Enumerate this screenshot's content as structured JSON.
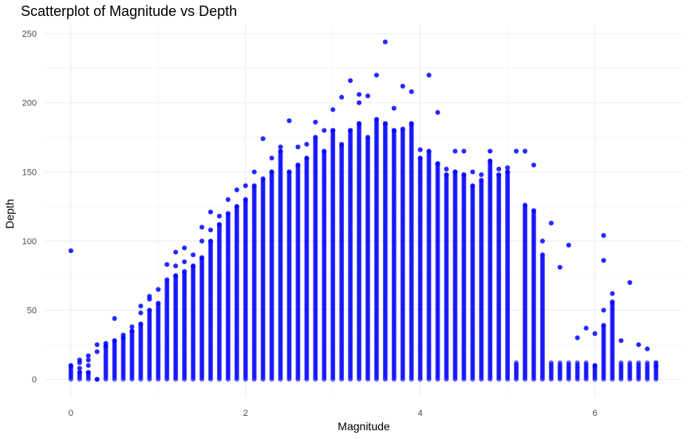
{
  "chart_data": {
    "type": "scatter",
    "title": "Scatterplot of Magnitude vs Depth",
    "xlabel": "Magnitude",
    "ylabel": "Depth",
    "xlim": [
      -0.3,
      7.0
    ],
    "ylim": [
      -12,
      257
    ],
    "x_ticks": [
      0,
      2,
      4,
      6
    ],
    "y_ticks": [
      0,
      50,
      100,
      150,
      200,
      250
    ],
    "grid": true,
    "point_color": "#0000ff",
    "point_opacity": 0.6,
    "series": [
      {
        "points": [
          [
            0.0,
            10
          ],
          [
            0.0,
            93
          ],
          [
            0.1,
            12
          ],
          [
            0.1,
            8
          ],
          [
            0.1,
            5
          ],
          [
            0.1,
            14
          ],
          [
            0.2,
            10
          ],
          [
            0.2,
            14
          ],
          [
            0.2,
            17
          ],
          [
            0.2,
            5
          ],
          [
            0.3,
            20
          ],
          [
            0.3,
            25
          ],
          [
            0.3,
            0
          ],
          [
            0.4,
            24
          ],
          [
            0.4,
            26
          ],
          [
            0.5,
            28
          ],
          [
            0.5,
            44
          ],
          [
            0.6,
            30
          ],
          [
            0.6,
            32
          ],
          [
            0.7,
            35
          ],
          [
            0.7,
            38
          ],
          [
            0.8,
            40
          ],
          [
            0.8,
            48
          ],
          [
            0.8,
            53
          ],
          [
            0.9,
            50
          ],
          [
            0.9,
            58
          ],
          [
            0.9,
            60
          ],
          [
            1.0,
            55
          ],
          [
            1.0,
            65
          ],
          [
            1.1,
            72
          ],
          [
            1.1,
            83
          ],
          [
            1.2,
            75
          ],
          [
            1.2,
            82
          ],
          [
            1.2,
            92
          ],
          [
            1.3,
            78
          ],
          [
            1.3,
            85
          ],
          [
            1.3,
            95
          ],
          [
            1.4,
            82
          ],
          [
            1.4,
            90
          ],
          [
            1.5,
            88
          ],
          [
            1.5,
            100
          ],
          [
            1.5,
            110
          ],
          [
            1.6,
            100
          ],
          [
            1.6,
            108
          ],
          [
            1.6,
            121
          ],
          [
            1.7,
            112
          ],
          [
            1.7,
            118
          ],
          [
            1.8,
            120
          ],
          [
            1.8,
            130
          ],
          [
            1.9,
            125
          ],
          [
            1.9,
            137
          ],
          [
            2.0,
            130
          ],
          [
            2.0,
            140
          ],
          [
            2.1,
            140
          ],
          [
            2.1,
            150
          ],
          [
            2.2,
            145
          ],
          [
            2.2,
            174
          ],
          [
            2.3,
            150
          ],
          [
            2.3,
            160
          ],
          [
            2.4,
            165
          ],
          [
            2.4,
            168
          ],
          [
            2.5,
            150
          ],
          [
            2.5,
            187
          ],
          [
            2.6,
            155
          ],
          [
            2.6,
            168
          ],
          [
            2.7,
            160
          ],
          [
            2.7,
            170
          ],
          [
            2.8,
            175
          ],
          [
            2.8,
            186
          ],
          [
            2.9,
            165
          ],
          [
            2.9,
            180
          ],
          [
            3.0,
            180
          ],
          [
            3.0,
            195
          ],
          [
            3.1,
            170
          ],
          [
            3.1,
            204
          ],
          [
            3.2,
            180
          ],
          [
            3.2,
            216
          ],
          [
            3.3,
            185
          ],
          [
            3.3,
            206
          ],
          [
            3.3,
            200
          ],
          [
            3.4,
            175
          ],
          [
            3.4,
            205
          ],
          [
            3.5,
            188
          ],
          [
            3.5,
            220
          ],
          [
            3.6,
            185
          ],
          [
            3.6,
            244
          ],
          [
            3.7,
            180
          ],
          [
            3.7,
            196
          ],
          [
            3.8,
            181
          ],
          [
            3.8,
            212
          ],
          [
            3.9,
            185
          ],
          [
            3.9,
            208
          ],
          [
            4.0,
            160
          ],
          [
            4.0,
            166
          ],
          [
            4.1,
            165
          ],
          [
            4.1,
            220
          ],
          [
            4.2,
            156
          ],
          [
            4.2,
            193
          ],
          [
            4.3,
            148
          ],
          [
            4.3,
            152
          ],
          [
            4.4,
            150
          ],
          [
            4.4,
            165
          ],
          [
            4.5,
            148
          ],
          [
            4.5,
            165
          ],
          [
            4.6,
            150
          ],
          [
            4.6,
            140
          ],
          [
            4.7,
            144
          ],
          [
            4.7,
            148
          ],
          [
            4.8,
            158
          ],
          [
            4.8,
            165
          ],
          [
            4.9,
            152
          ],
          [
            4.9,
            148
          ],
          [
            5.0,
            150
          ],
          [
            5.0,
            153
          ],
          [
            5.1,
            165
          ],
          [
            5.2,
            126
          ],
          [
            5.2,
            165
          ],
          [
            5.3,
            122
          ],
          [
            5.3,
            155
          ],
          [
            5.4,
            90
          ],
          [
            5.4,
            100
          ],
          [
            5.5,
            113
          ],
          [
            5.6,
            81
          ],
          [
            5.7,
            97
          ],
          [
            5.8,
            30
          ],
          [
            5.9,
            37
          ],
          [
            6.0,
            10
          ],
          [
            6.0,
            33
          ],
          [
            6.1,
            104
          ],
          [
            6.1,
            86
          ],
          [
            6.1,
            50
          ],
          [
            6.1,
            39
          ],
          [
            6.2,
            62
          ],
          [
            6.2,
            56
          ],
          [
            6.3,
            28
          ],
          [
            6.4,
            70
          ],
          [
            6.5,
            25
          ],
          [
            6.6,
            22
          ],
          [
            6.7,
            12
          ],
          [
            6.7,
            10
          ]
        ]
      }
    ]
  }
}
